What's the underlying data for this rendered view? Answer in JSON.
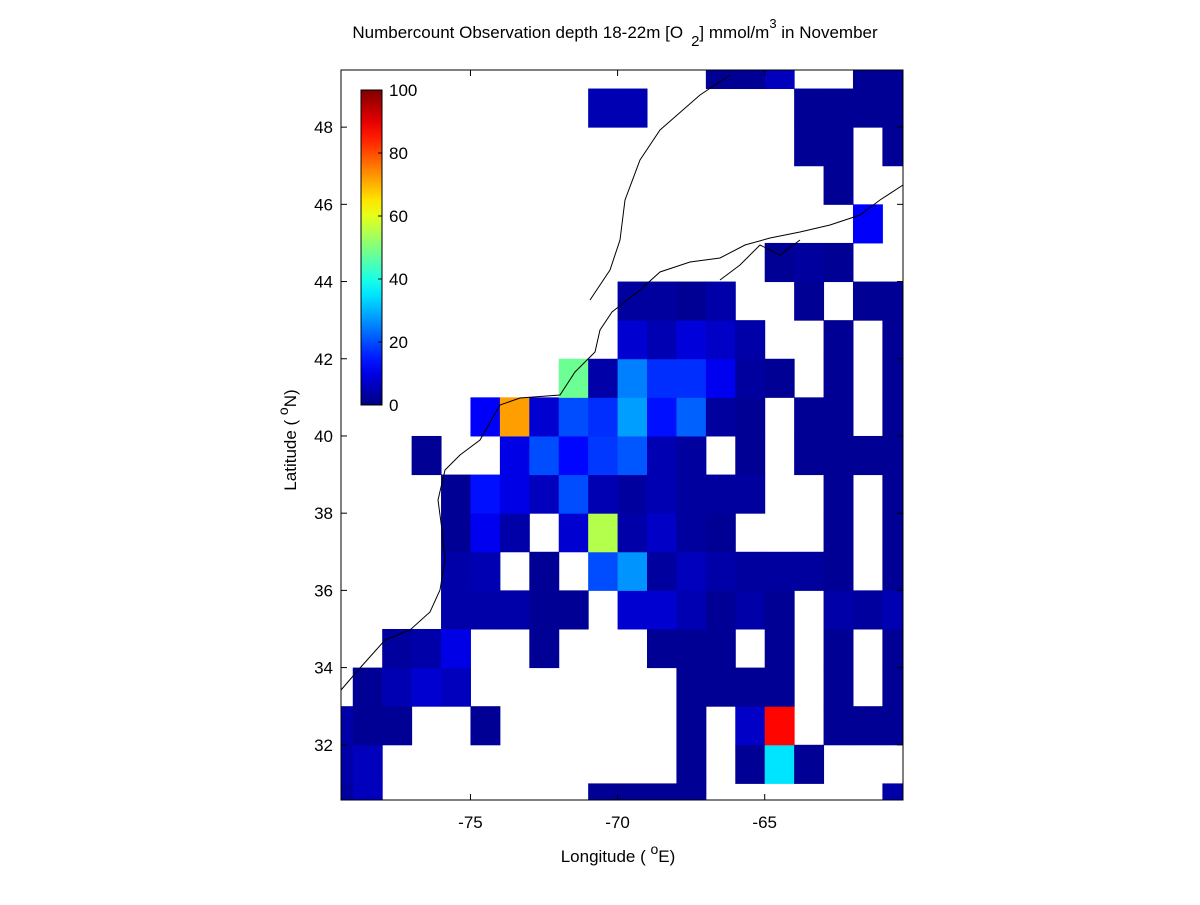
{
  "chart_data": {
    "type": "heatmap",
    "title": [
      "Numbercount Observation depth 18-22m [O",
      "2",
      "] mmol/m",
      "3",
      " in November"
    ],
    "xlabel": [
      "Longitude ( ",
      "o",
      "E)"
    ],
    "ylabel": [
      "Latitude ( ",
      "o",
      "N)"
    ],
    "x": [
      -79.5,
      -78.5,
      -77.5,
      -76.5,
      -75.5,
      -74.5,
      -73.5,
      -72.5,
      -71.5,
      -70.5,
      -69.5,
      -68.5,
      -67.5,
      -66.5,
      -65.5,
      -64.5,
      -63.5,
      -62.5,
      -61.5,
      -60.5
    ],
    "y": [
      30.5,
      31.5,
      32.5,
      33.5,
      34.5,
      35.5,
      36.5,
      37.5,
      38.5,
      39.5,
      40.5,
      41.5,
      42.5,
      43.5,
      44.5,
      45.5,
      46.5,
      47.5,
      48.5,
      49.5
    ],
    "values": [
      [
        3,
        6,
        null,
        null,
        null,
        null,
        null,
        null,
        null,
        2,
        2,
        2,
        2,
        null,
        null,
        null,
        null,
        null,
        null,
        4
      ],
      [
        4,
        6,
        null,
        null,
        null,
        null,
        null,
        null,
        null,
        null,
        null,
        null,
        2,
        null,
        2,
        35,
        2,
        null,
        null,
        null
      ],
      [
        4,
        2,
        2,
        null,
        null,
        2,
        null,
        null,
        null,
        null,
        null,
        null,
        2,
        null,
        7,
        87,
        null,
        2,
        2,
        2
      ],
      [
        null,
        2,
        5,
        8,
        6,
        null,
        null,
        null,
        null,
        null,
        null,
        null,
        2,
        2,
        2,
        2,
        null,
        2,
        null,
        2
      ],
      [
        null,
        null,
        3,
        4,
        10,
        null,
        null,
        2,
        null,
        null,
        null,
        2,
        2,
        2,
        null,
        2,
        null,
        2,
        null,
        2
      ],
      [
        null,
        null,
        null,
        null,
        4,
        4,
        4,
        2,
        2,
        null,
        8,
        8,
        5,
        2,
        4,
        2,
        null,
        4,
        3,
        5
      ],
      [
        null,
        null,
        null,
        null,
        4,
        5,
        null,
        2,
        null,
        20,
        27,
        3,
        6,
        4,
        3,
        3,
        3,
        2,
        null,
        2
      ],
      [
        null,
        null,
        null,
        null,
        2,
        11,
        4,
        null,
        8,
        55,
        4,
        7,
        3,
        2,
        null,
        null,
        null,
        2,
        null,
        2
      ],
      [
        null,
        null,
        null,
        null,
        2,
        14,
        10,
        6,
        20,
        5,
        3,
        5,
        3,
        3,
        3,
        null,
        null,
        2,
        null,
        2
      ],
      [
        null,
        null,
        null,
        2,
        null,
        null,
        10,
        20,
        13,
        18,
        21,
        5,
        3,
        null,
        2,
        null,
        2,
        2,
        2,
        2
      ],
      [
        null,
        null,
        null,
        null,
        null,
        12,
        72,
        8,
        20,
        17,
        28,
        14,
        22,
        3,
        2,
        null,
        2,
        2,
        null,
        2
      ],
      [
        null,
        null,
        null,
        null,
        null,
        null,
        null,
        null,
        48,
        4,
        25,
        17,
        17,
        11,
        3,
        2,
        null,
        2,
        null,
        2
      ],
      [
        null,
        null,
        null,
        null,
        null,
        null,
        null,
        null,
        null,
        null,
        8,
        5,
        9,
        7,
        4,
        null,
        null,
        2,
        null,
        2
      ],
      [
        null,
        null,
        null,
        null,
        null,
        null,
        null,
        null,
        null,
        null,
        3,
        3,
        2,
        4,
        null,
        null,
        2,
        null,
        2,
        2
      ],
      [
        null,
        null,
        null,
        null,
        null,
        null,
        null,
        null,
        null,
        null,
        null,
        null,
        null,
        null,
        null,
        2,
        3,
        2,
        null,
        null
      ],
      [
        null,
        null,
        null,
        null,
        null,
        null,
        null,
        null,
        null,
        null,
        null,
        null,
        null,
        null,
        null,
        null,
        null,
        null,
        12,
        null
      ],
      [
        null,
        null,
        null,
        null,
        null,
        null,
        null,
        null,
        null,
        null,
        null,
        null,
        null,
        null,
        null,
        null,
        null,
        2,
        null,
        null
      ],
      [
        null,
        null,
        null,
        null,
        null,
        null,
        null,
        null,
        null,
        null,
        null,
        null,
        null,
        null,
        null,
        null,
        2,
        2,
        null,
        2
      ],
      [
        null,
        null,
        null,
        null,
        null,
        null,
        null,
        null,
        null,
        5,
        5,
        null,
        null,
        null,
        null,
        null,
        2,
        2,
        2,
        2
      ],
      [
        null,
        null,
        null,
        null,
        null,
        null,
        null,
        null,
        null,
        null,
        null,
        null,
        null,
        2,
        2,
        6,
        null,
        null,
        2,
        2
      ]
    ],
    "xlim": [
      -79.4,
      -60.3
    ],
    "ylim": [
      30.57,
      49.48
    ],
    "xticks": [
      -75,
      -70,
      -65
    ],
    "yticks": [
      32,
      34,
      36,
      38,
      40,
      42,
      44,
      46,
      48
    ],
    "clim": [
      0,
      100
    ],
    "cticks": [
      0,
      20,
      40,
      60,
      80,
      100
    ],
    "colormap": "jet"
  }
}
